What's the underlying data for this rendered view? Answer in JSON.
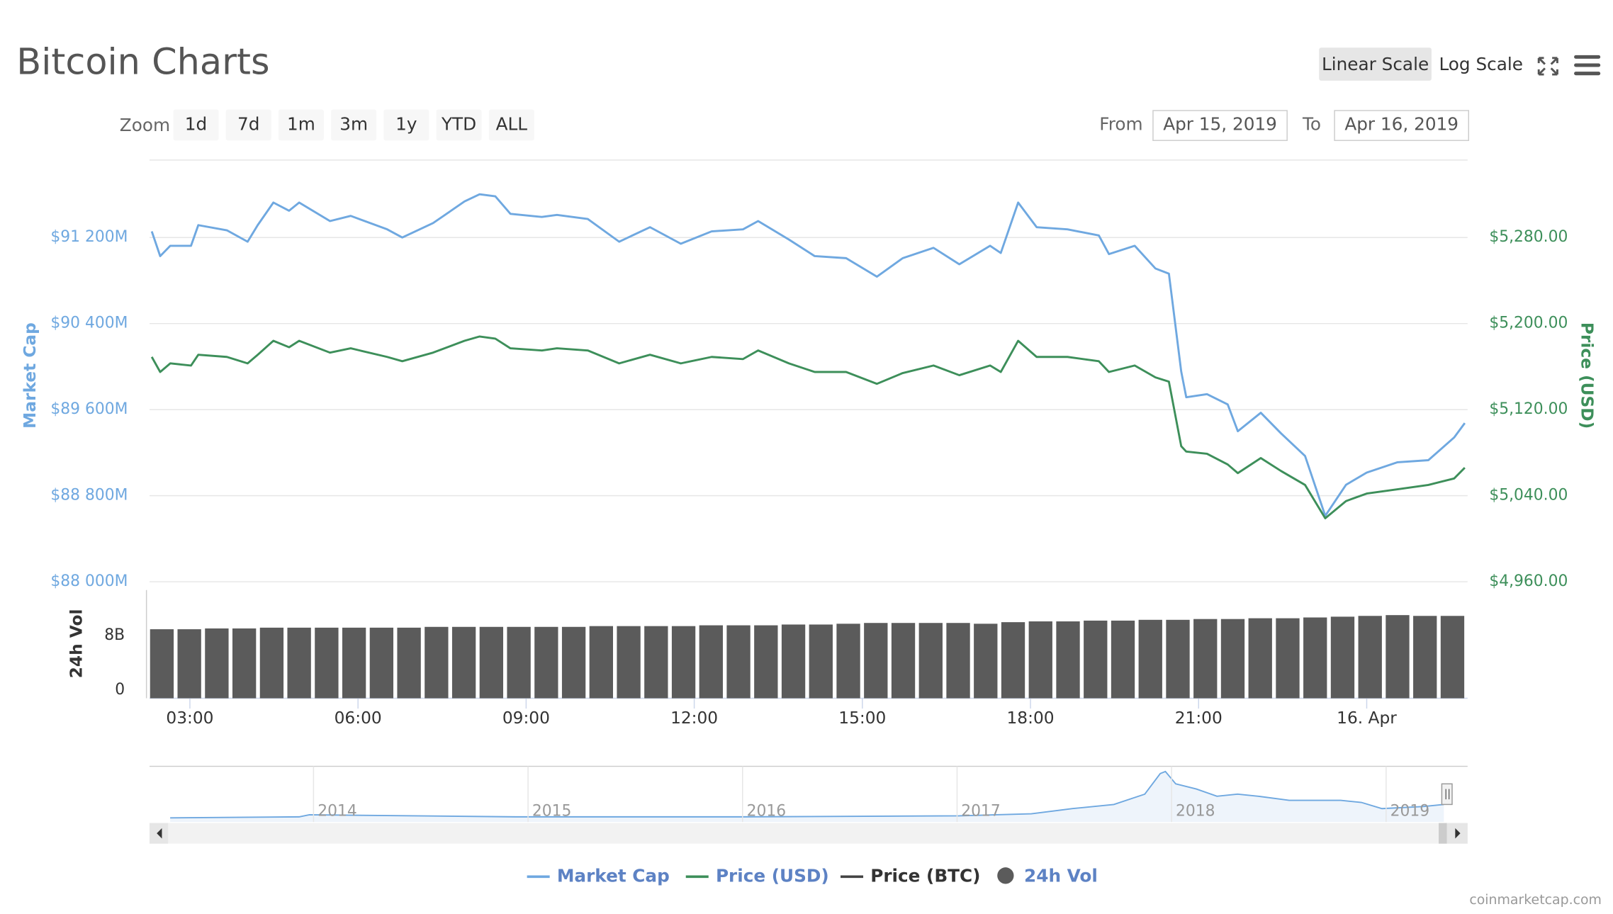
{
  "header": {
    "title": "Bitcoin Charts",
    "scale_buttons": [
      "Linear Scale",
      "Log Scale"
    ],
    "selected_scale": "Linear Scale"
  },
  "zoom": {
    "label": "Zoom",
    "buttons": [
      "1d",
      "7d",
      "1m",
      "3m",
      "1y",
      "YTD",
      "ALL"
    ]
  },
  "range": {
    "from_label": "From",
    "from": "Apr 15, 2019",
    "to_label": "To",
    "to": "Apr 16, 2019"
  },
  "navigator": {
    "years": [
      "2014",
      "2015",
      "2016",
      "2017",
      "2018",
      "2019"
    ]
  },
  "credit": "coinmarketcap.com",
  "chart_data": [
    {
      "type": "line",
      "log": false,
      "grid": true,
      "ylabel": "Market Cap",
      "y2label": "Price (USD)",
      "xlim": [
        2.28,
        25.8
      ],
      "xticks": [
        {
          "value": 3,
          "label": "03:00"
        },
        {
          "value": 6,
          "label": "06:00"
        },
        {
          "value": 9,
          "label": "09:00"
        },
        {
          "value": 12,
          "label": "12:00"
        },
        {
          "value": 15,
          "label": "15:00"
        },
        {
          "value": 18,
          "label": "18:00"
        },
        {
          "value": 21,
          "label": "21:00"
        },
        {
          "value": 24,
          "label": "16. Apr"
        }
      ],
      "ylim": [
        88000,
        91920
      ],
      "yticks": [
        {
          "value": 88000,
          "label": "$88 000M"
        },
        {
          "value": 88800,
          "label": "$88 800M"
        },
        {
          "value": 89600,
          "label": "$89 600M"
        },
        {
          "value": 90400,
          "label": "$90 400M"
        },
        {
          "value": 91200,
          "label": "$91 200M"
        }
      ],
      "y2lim": [
        4960,
        5352
      ],
      "y2ticks": [
        {
          "value": 4960,
          "label": "$4,960.00"
        },
        {
          "value": 5040,
          "label": "$5,040.00"
        },
        {
          "value": 5120,
          "label": "$5,120.00"
        },
        {
          "value": 5200,
          "label": "$5,200.00"
        },
        {
          "value": 5280,
          "label": "$5,280.00"
        }
      ],
      "x": [
        2.32,
        2.47,
        2.65,
        3.02,
        3.15,
        3.66,
        4.03,
        4.21,
        4.49,
        4.77,
        4.95,
        5.5,
        5.87,
        6.52,
        6.79,
        7.34,
        7.9,
        8.17,
        8.45,
        8.72,
        9.28,
        9.55,
        10.1,
        10.66,
        11.21,
        11.76,
        12.31,
        12.87,
        13.14,
        13.69,
        14.15,
        14.71,
        15.26,
        15.72,
        16.27,
        16.73,
        17.28,
        17.47,
        17.78,
        18.11,
        18.66,
        19.22,
        19.4,
        19.86,
        20.23,
        20.47,
        20.69,
        20.78,
        21.15,
        21.52,
        21.7,
        22.11,
        22.47,
        22.9,
        23.26,
        23.63,
        24.0,
        24.55,
        25.1,
        25.56,
        25.75
      ],
      "series": [
        {
          "name": "Market Cap",
          "color": "#6fa8e0",
          "axis": "y",
          "values": [
            91257,
            91027,
            91123,
            91123,
            91315,
            91267,
            91161,
            91315,
            91525,
            91449,
            91525,
            91353,
            91401,
            91276,
            91200,
            91334,
            91535,
            91602,
            91583,
            91420,
            91391,
            91410,
            91372,
            91161,
            91296,
            91142,
            91257,
            91276,
            91353,
            91181,
            91027,
            91008,
            90836,
            91008,
            91104,
            90951,
            91123,
            91056,
            91525,
            91296,
            91276,
            91219,
            91046,
            91123,
            90912,
            90864,
            89954,
            89715,
            89744,
            89648,
            89399,
            89571,
            89380,
            89169,
            88613,
            88901,
            89015,
            89111,
            89130,
            89341,
            89475
          ]
        },
        {
          "name": "Price (USD)",
          "color": "#3d8f5a",
          "axis": "y2",
          "values": [
            5169,
            5155,
            5163,
            5161,
            5171,
            5169,
            5163,
            5171,
            5184,
            5178,
            5184,
            5173,
            5177,
            5169,
            5165,
            5173,
            5184,
            5188,
            5186,
            5177,
            5175,
            5177,
            5175,
            5163,
            5171,
            5163,
            5169,
            5167,
            5175,
            5163,
            5155,
            5155,
            5144,
            5154,
            5161,
            5152,
            5161,
            5155,
            5184,
            5169,
            5169,
            5165,
            5155,
            5161,
            5150,
            5146,
            5086,
            5081,
            5079,
            5069,
            5061,
            5075,
            5063,
            5050,
            5019,
            5035,
            5042,
            5046,
            5050,
            5056,
            5066
          ]
        },
        {
          "name": "Price (BTC)",
          "color": "#444444",
          "visible": false
        }
      ]
    },
    {
      "type": "bar",
      "ylabel": "24h Vol",
      "xlim": [
        2.28,
        25.8
      ],
      "ylim": [
        0,
        13.8
      ],
      "yticks": [
        0,
        {
          "value": 8,
          "label": "8B"
        }
      ],
      "x": [
        2.5,
        2.99,
        3.48,
        3.97,
        4.46,
        4.95,
        5.44,
        5.93,
        6.42,
        6.91,
        7.4,
        7.89,
        8.38,
        8.87,
        9.36,
        9.85,
        10.34,
        10.83,
        11.32,
        11.81,
        12.3,
        12.79,
        13.28,
        13.77,
        14.26,
        14.75,
        15.24,
        15.73,
        16.22,
        16.71,
        17.2,
        17.69,
        18.18,
        18.67,
        19.16,
        19.65,
        20.14,
        20.63,
        21.12,
        21.61,
        22.1,
        22.59,
        23.08,
        23.57,
        24.06,
        24.55,
        25.04,
        25.53
      ],
      "series": [
        {
          "name": "24h Vol",
          "color": "#5b5b5b",
          "values": [
            8.8,
            8.8,
            8.9,
            8.9,
            9.0,
            9.0,
            9.0,
            9.0,
            9.0,
            9.0,
            9.1,
            9.1,
            9.1,
            9.1,
            9.1,
            9.1,
            9.2,
            9.2,
            9.2,
            9.2,
            9.3,
            9.3,
            9.3,
            9.4,
            9.4,
            9.5,
            9.6,
            9.6,
            9.6,
            9.6,
            9.5,
            9.7,
            9.8,
            9.8,
            9.9,
            9.9,
            10.0,
            10.0,
            10.1,
            10.1,
            10.2,
            10.2,
            10.3,
            10.4,
            10.5,
            10.6,
            10.5,
            10.5
          ]
        }
      ]
    }
  ]
}
